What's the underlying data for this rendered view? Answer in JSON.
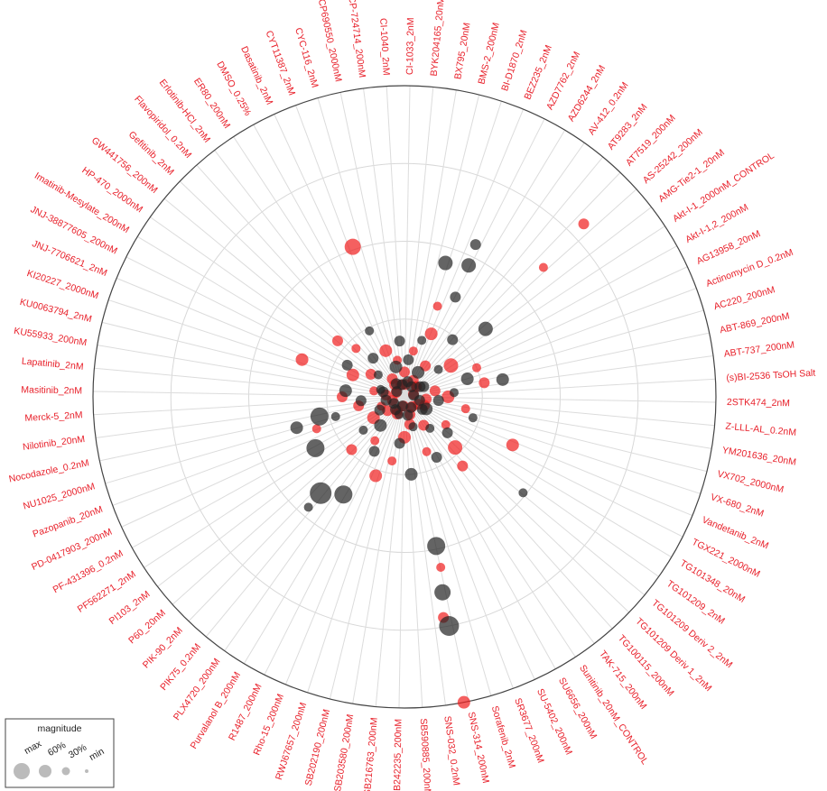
{
  "chart_data": {
    "type": "polar-scatter",
    "spoke_labels": [
      "CI-1033_2nM",
      "BYK204165_20nM",
      "BX795_20nM",
      "BMS-2_200nM",
      "BI-D1870_2nM",
      "BEZ235_2nM",
      "AZD7762_2nM",
      "AZD6244_2nM",
      "AV-412_0.2nM",
      "AT9283_2nM",
      "AT7519_200nM",
      "AS-25242_200nM",
      "AMG-Tie2-1_20nM",
      "Akt-I-1_2000nM_CONTROL",
      "Akt-I-1,2_200nM",
      "AG13958_20nM",
      "Actinomycin D_0.2nM",
      "AC220_200nM",
      "ABT-869_200nM",
      "ABT-737_200nM",
      "(s)BI-2536 TsOH Salt",
      "2STK474_2nM",
      "Z-LLL-AL_0.2nM",
      "YM201636_20nM",
      "VX702_2000nM",
      "VX-680_2nM",
      "Vandetanib_2nM",
      "TGX221_2000nM",
      "TG101348_20nM",
      "TG101209_2nM",
      "TG101209 Deriv 2_2nM",
      "TG101209 Deriv 1_2nM",
      "TG100115_200nM",
      "TAK-715_200nM",
      "Sunitinib_20nM_CONTROL",
      "SU6656_200nM",
      "SU-5402_200nM",
      "SR3677_200nM",
      "Sorafenib_2nM",
      "SNS-314_200nM",
      "SNS-032_0.2nM",
      "SB590885_200nM",
      "SB242235_200nM",
      "SB216763_200nM",
      "SB203580_200nM",
      "SB202190_200nM",
      "RWJ67657_200nM",
      "Rho-15_200nM",
      "R1487_200nM",
      "Purvalanol B_200nM",
      "PLX4720_200nM",
      "PIK75_0.2nM",
      "PIK-90_2nM",
      "P60_20nM",
      "PI103_2nM",
      "PF562271_2nM",
      "PF-431396_0.2nM",
      "PD-0417903_200nM",
      "Pazopanib_20nM",
      "NU1025_2000nM",
      "Nocodazole_0.2nM",
      "Nilotinib_20nM",
      "Merck-5_2nM",
      "Masitinib_2nM",
      "Lapatinib_2nM",
      "KU55933_200nM",
      "KU0063794_2nM",
      "KI20227_2000nM",
      "JNJ-7706621_2nM",
      "JNJ-38877605_200nM",
      "Imatinib-Mesylate_200nM",
      "HP-470_2000nM",
      "GW441756_200nM",
      "Gefitinib_2nM",
      "Flavopiridol_0.2nM",
      "Erlotinib-HCl_2nM",
      "ER80_200nM",
      "DMSO_0.25%",
      "Dasatinib_2nM",
      "CYT11387_2nM",
      "CYC-116_2nM",
      "CP690550_2000nM",
      "CP-724714_200nM",
      "CI-1040_2nM"
    ],
    "series": [
      {
        "color": "#f01c1c",
        "theta": [
          46,
          47,
          341,
          169,
          290,
          114,
          170,
          168,
          0,
          11,
          23,
          34,
          45,
          56,
          68,
          79,
          90,
          101,
          113,
          124,
          135,
          146,
          158,
          169,
          180,
          191,
          203,
          214,
          225,
          236,
          248,
          259,
          270,
          281,
          293,
          304,
          315,
          326,
          338,
          349,
          5,
          28,
          50,
          73,
          96,
          118,
          141,
          163,
          186,
          208,
          231,
          253,
          276,
          298,
          321,
          343,
          140,
          200,
          250,
          310,
          20,
          80
        ],
        "r": [
          0.8,
          0.61,
          0.51,
          1.0,
          0.35,
          0.38,
          0.72,
          0.56,
          0.08,
          0.15,
          0.22,
          0.12,
          0.05,
          0.18,
          0.25,
          0.1,
          0.14,
          0.2,
          0.07,
          0.16,
          0.23,
          0.11,
          0.19,
          0.09,
          0.13,
          0.21,
          0.06,
          0.17,
          0.24,
          0.12,
          0.08,
          0.15,
          0.2,
          0.1,
          0.18,
          0.13,
          0.22,
          0.07,
          0.16,
          0.12,
          0.04,
          0.06,
          0.05,
          0.03,
          0.07,
          0.05,
          0.04,
          0.06,
          0.03,
          0.05,
          0.07,
          0.04,
          0.06,
          0.03,
          0.05,
          0.04,
          0.29,
          0.27,
          0.3,
          0.28,
          0.31,
          0.26
        ],
        "size": [
          0.3,
          0.2,
          0.6,
          0.4,
          0.4,
          0.4,
          0.3,
          0.2,
          0.3,
          0.2,
          0.4,
          0.3,
          0.2,
          0.5,
          0.2,
          0.3,
          0.4,
          0.2,
          0.3,
          0.2,
          0.5,
          0.3,
          0.2,
          0.3,
          0.4,
          0.2,
          0.3,
          0.2,
          0.3,
          0.4,
          0.2,
          0.3,
          0.3,
          0.2,
          0.4,
          0.3,
          0.2,
          0.3,
          0.4,
          0.2,
          0.3,
          0.3,
          0.3,
          0.3,
          0.3,
          0.3,
          0.3,
          0.3,
          0.3,
          0.3,
          0.3,
          0.3,
          0.3,
          0.3,
          0.3,
          0.3,
          0.3,
          0.4,
          0.2,
          0.3,
          0.2,
          0.3
        ]
      },
      {
        "color": "#222222",
        "theta": [
          257,
          240,
          254,
          221,
          212,
          169,
          169,
          168,
          17,
          27,
          26,
          25,
          50,
          80,
          129,
          221,
          6,
          17,
          29,
          40,
          51,
          62,
          74,
          85,
          96,
          107,
          119,
          130,
          141,
          152,
          164,
          175,
          186,
          197,
          209,
          220,
          231,
          242,
          254,
          265,
          276,
          287,
          299,
          310,
          321,
          332,
          344,
          355,
          12,
          35,
          57,
          80,
          103,
          125,
          148,
          170,
          193,
          215,
          238,
          260,
          283,
          305,
          328,
          350
        ],
        "r": [
          0.28,
          0.33,
          0.36,
          0.41,
          0.37,
          0.75,
          0.64,
          0.49,
          0.45,
          0.36,
          0.47,
          0.54,
          0.34,
          0.32,
          0.49,
          0.47,
          0.12,
          0.19,
          0.09,
          0.24,
          0.14,
          0.07,
          0.21,
          0.16,
          0.11,
          0.23,
          0.08,
          0.18,
          0.13,
          0.22,
          0.1,
          0.25,
          0.15,
          0.06,
          0.2,
          0.12,
          0.17,
          0.09,
          0.23,
          0.14,
          0.19,
          0.08,
          0.21,
          0.11,
          0.16,
          0.24,
          0.1,
          0.18,
          0.05,
          0.04,
          0.06,
          0.03,
          0.05,
          0.07,
          0.04,
          0.06,
          0.03,
          0.05,
          0.04,
          0.06,
          0.07,
          0.03,
          0.05,
          0.04
        ],
        "size": [
          0.7,
          0.7,
          0.4,
          0.9,
          0.7,
          0.8,
          0.6,
          0.7,
          0.5,
          0.3,
          0.5,
          0.3,
          0.5,
          0.4,
          0.2,
          0.2,
          0.3,
          0.2,
          0.4,
          0.3,
          0.2,
          0.3,
          0.4,
          0.2,
          0.3,
          0.2,
          0.4,
          0.3,
          0.2,
          0.3,
          0.2,
          0.4,
          0.3,
          0.2,
          0.3,
          0.4,
          0.2,
          0.3,
          0.2,
          0.3,
          0.4,
          0.2,
          0.3,
          0.2,
          0.3,
          0.2,
          0.4,
          0.3,
          0.3,
          0.3,
          0.3,
          0.3,
          0.3,
          0.3,
          0.3,
          0.3,
          0.3,
          0.3,
          0.3,
          0.3,
          0.3,
          0.3,
          0.3,
          0.3
        ]
      }
    ],
    "legend": {
      "title": "magnitude",
      "labels": [
        "max",
        "60%",
        "30%",
        "min"
      ]
    },
    "label_color": "#e8202a"
  }
}
